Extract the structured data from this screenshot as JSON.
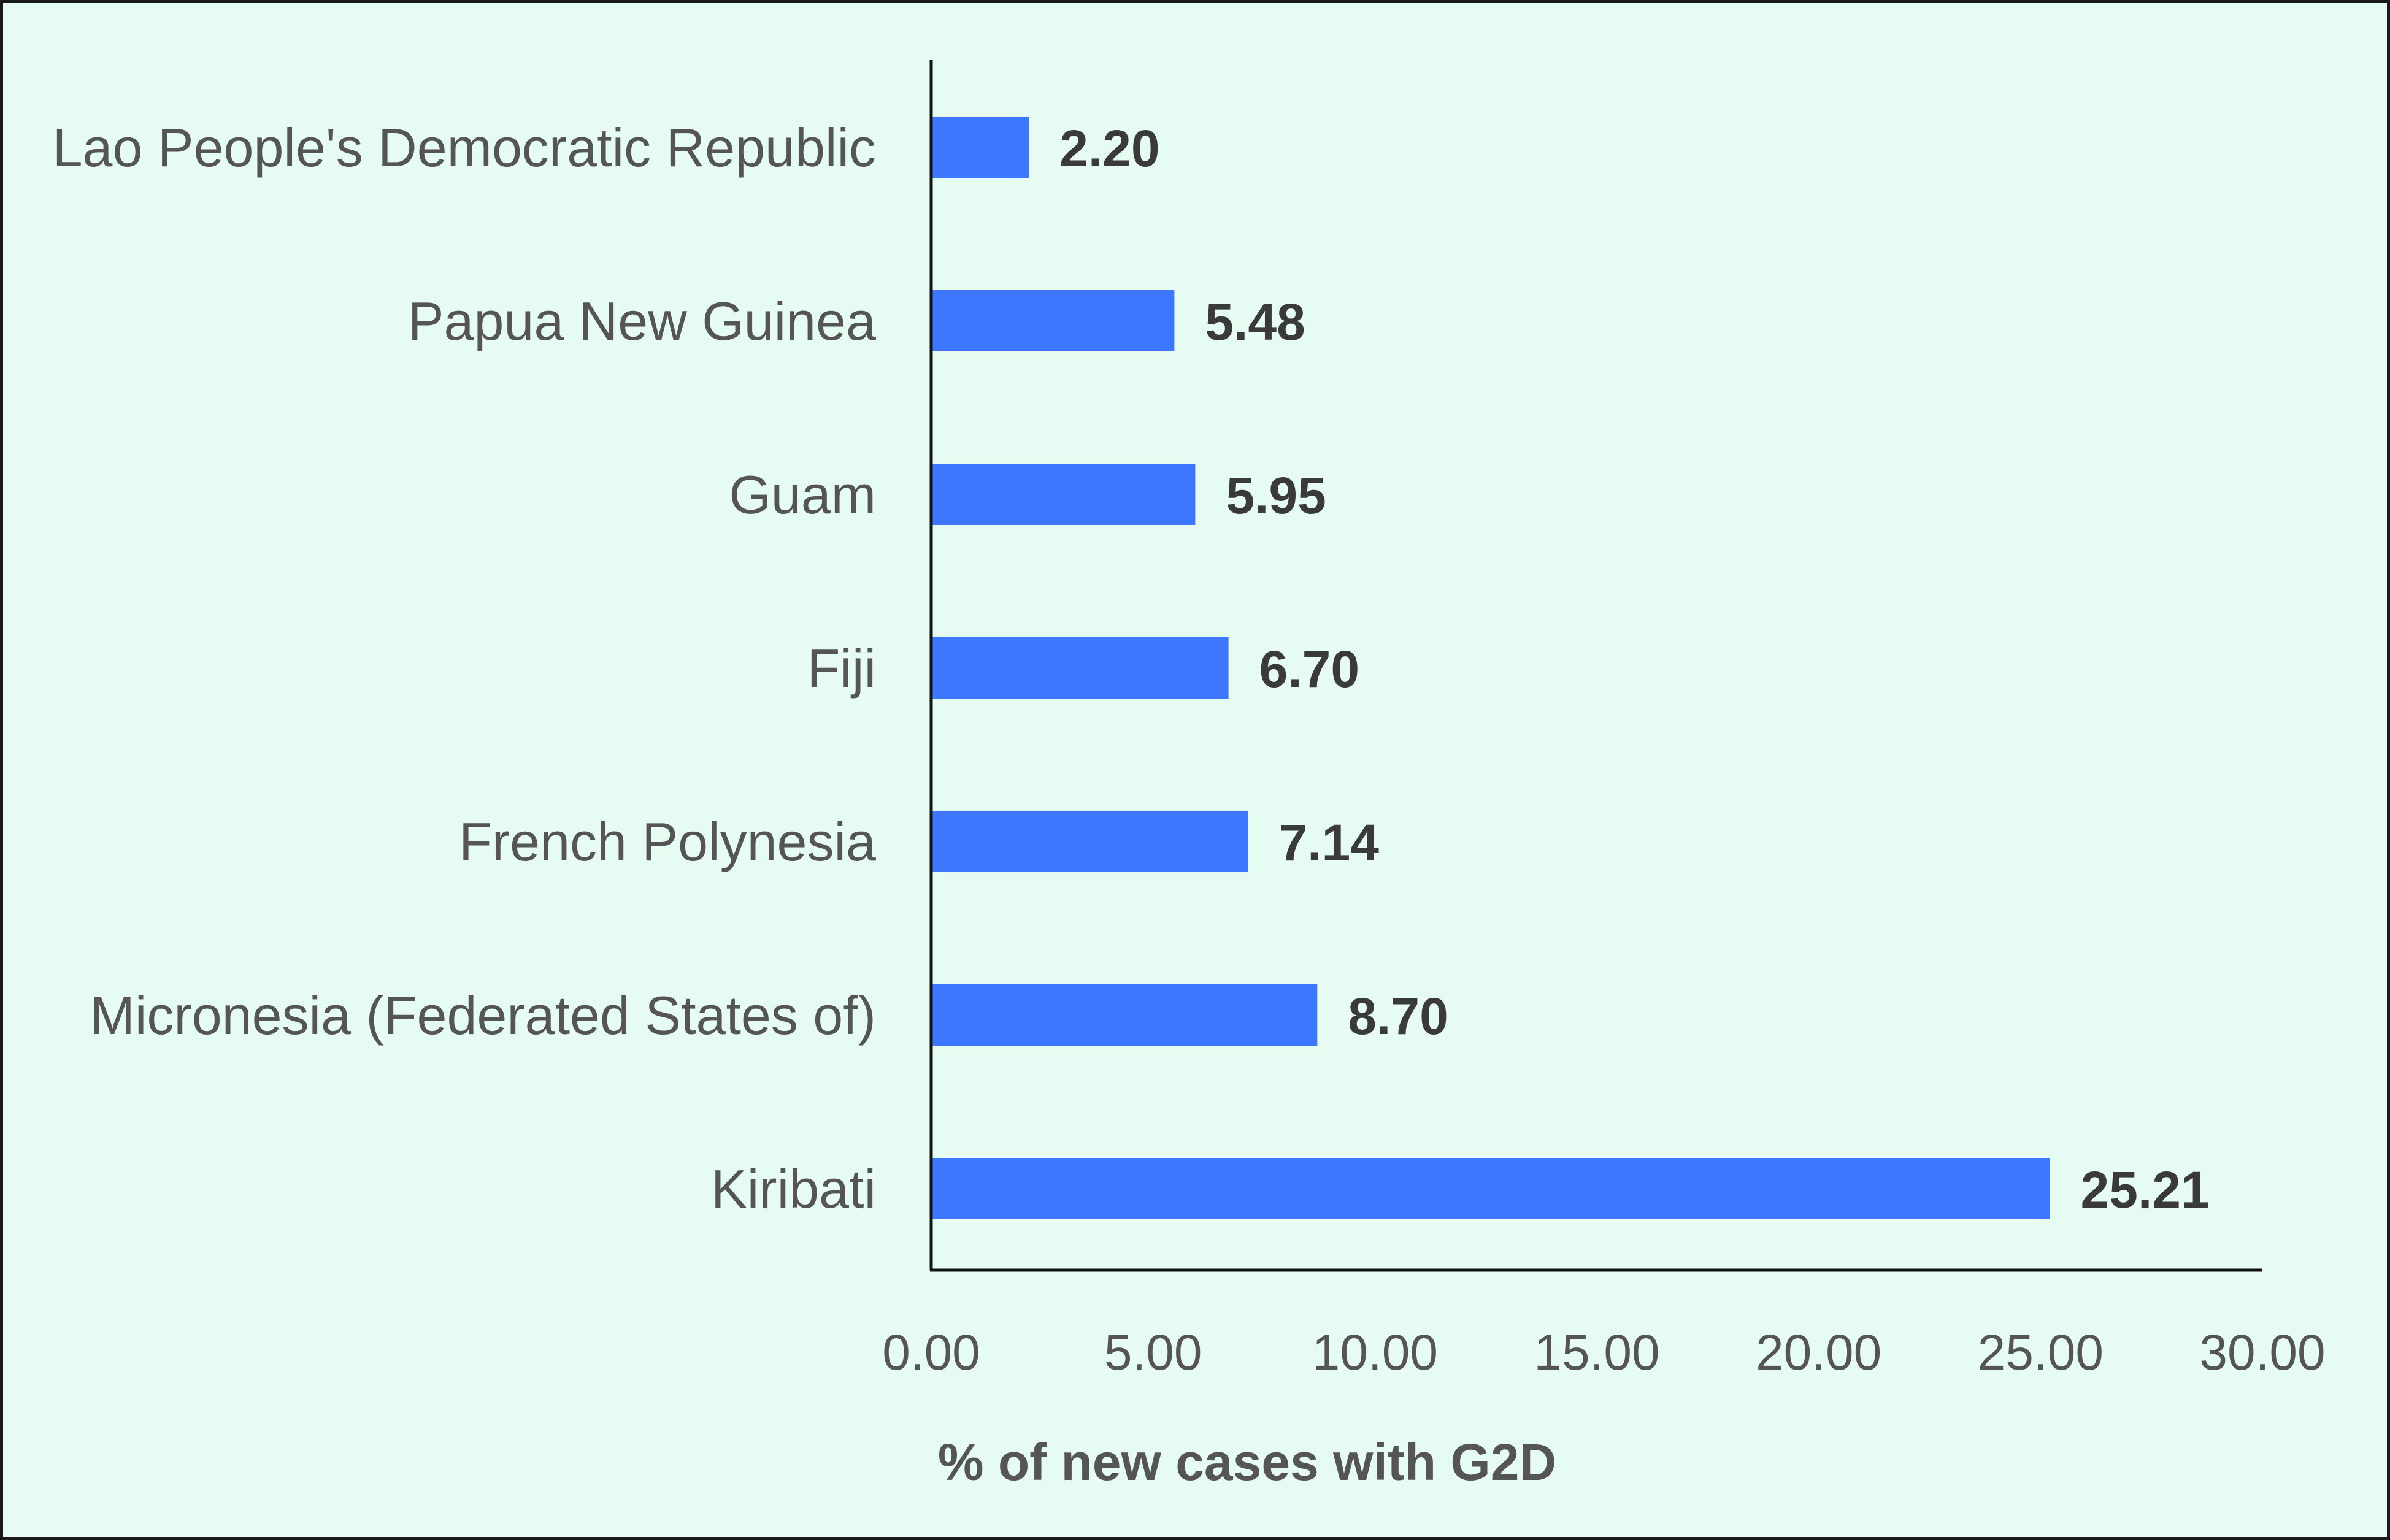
{
  "chart_data": {
    "type": "bar",
    "orientation": "horizontal",
    "categories": [
      "Lao People's Democratic Republic",
      "Papua New Guinea",
      "Guam",
      "Fiji",
      "French Polynesia",
      "Micronesia (Federated States of)",
      "Kiribati"
    ],
    "values": [
      2.2,
      5.48,
      5.95,
      6.7,
      7.14,
      8.7,
      25.21
    ],
    "value_labels": [
      "2.20",
      "5.48",
      "5.95",
      "6.70",
      "7.14",
      "8.70",
      "25.21"
    ],
    "xlabel": "% of new cases with G2D",
    "xlim": [
      0,
      30
    ],
    "xticks": [
      0,
      5,
      10,
      15,
      20,
      25,
      30
    ],
    "xtick_labels": [
      "0.00",
      "5.00",
      "10.00",
      "15.00",
      "20.00",
      "25.00",
      "30.00"
    ],
    "bar_color": "#3d76ff",
    "background_color": "#e6fbf1",
    "grid": false,
    "legend": "none"
  }
}
